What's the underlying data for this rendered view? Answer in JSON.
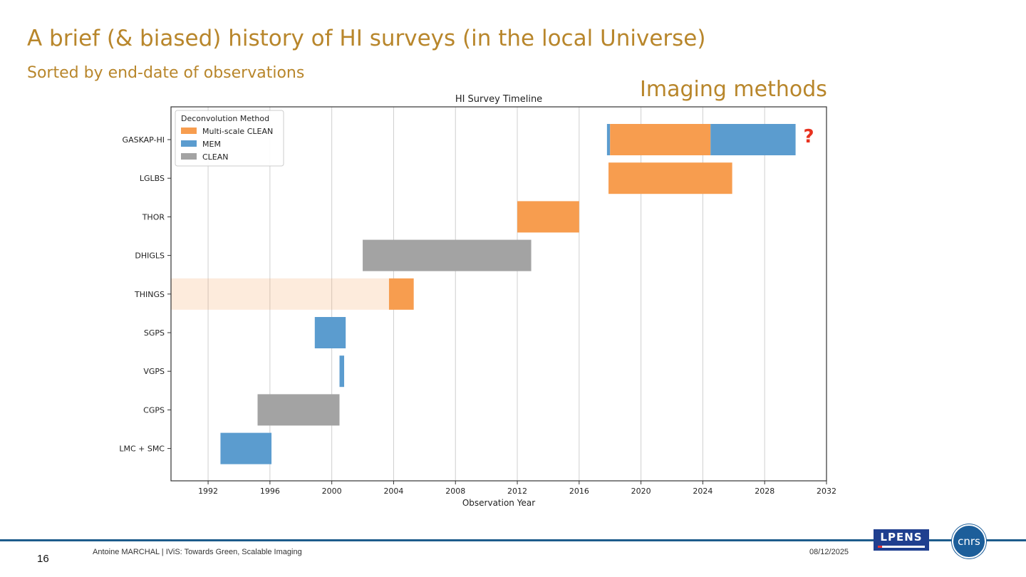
{
  "slide": {
    "title": "A brief (& biased) history of HI surveys (in the local Universe)",
    "subtitle": "Sorted by end-date of observations",
    "imaging_label": "Imaging methods",
    "question_mark": "?"
  },
  "footer": {
    "page_number": "16",
    "text": "Antoine MARCHAL  | IViS: Towards Green, Scalable Imaging",
    "date": "08/12/2025",
    "logo_lpens": "LPENS",
    "logo_cnrs": "cnrs"
  },
  "colors": {
    "accent": "#b8862b",
    "multiscale_clean": "#f79d4f",
    "mem": "#5b9ccf",
    "clean": "#a3a3a3",
    "things_shade": "#fdeee0",
    "question": "#e8321f",
    "footer_line": "#1d5c8c"
  },
  "chart_data": {
    "type": "bar",
    "orientation": "horizontal-timeline",
    "title": "HI Survey Timeline",
    "xlabel": "Observation Year",
    "ylabel": "",
    "xlim": [
      1989.6,
      2032
    ],
    "xticks": [
      1992,
      1996,
      2000,
      2004,
      2008,
      2012,
      2016,
      2020,
      2024,
      2028,
      2032
    ],
    "grid": "vertical",
    "legend": {
      "title": "Deconvolution Method",
      "position": "top-left",
      "entries": [
        {
          "label": "Multi-scale CLEAN",
          "method": "multiscale_clean"
        },
        {
          "label": "MEM",
          "method": "mem"
        },
        {
          "label": "CLEAN",
          "method": "clean"
        }
      ]
    },
    "categories": [
      "GASKAP-HI",
      "LGLBS",
      "THOR",
      "DHIGLS",
      "THINGS",
      "SGPS",
      "VGPS",
      "CGPS",
      "LMC + SMC"
    ],
    "bars": [
      {
        "survey": "GASKAP-HI",
        "start": 2017.8,
        "end": 2018.0,
        "method": "mem"
      },
      {
        "survey": "GASKAP-HI",
        "start": 2018.0,
        "end": 2024.5,
        "method": "multiscale_clean"
      },
      {
        "survey": "GASKAP-HI",
        "start": 2024.5,
        "end": 2030.0,
        "method": "mem"
      },
      {
        "survey": "LGLBS",
        "start": 2017.9,
        "end": 2025.9,
        "method": "multiscale_clean"
      },
      {
        "survey": "THOR",
        "start": 2012.0,
        "end": 2016.0,
        "method": "multiscale_clean"
      },
      {
        "survey": "DHIGLS",
        "start": 2002.0,
        "end": 2012.9,
        "method": "clean"
      },
      {
        "survey": "THINGS",
        "start": 2003.7,
        "end": 2005.3,
        "method": "multiscale_clean"
      },
      {
        "survey": "SGPS",
        "start": 1998.9,
        "end": 2000.9,
        "method": "mem"
      },
      {
        "survey": "VGPS",
        "start": 2000.5,
        "end": 2000.8,
        "method": "mem"
      },
      {
        "survey": "CGPS",
        "start": 1995.2,
        "end": 2000.5,
        "method": "clean"
      },
      {
        "survey": "LMC + SMC",
        "start": 1992.8,
        "end": 1996.1,
        "method": "mem"
      }
    ],
    "shaded_regions": [
      {
        "survey": "THINGS",
        "start": 1989.6,
        "end": 2003.7,
        "method": "multiscale_clean",
        "opacity": 0.2
      }
    ]
  }
}
